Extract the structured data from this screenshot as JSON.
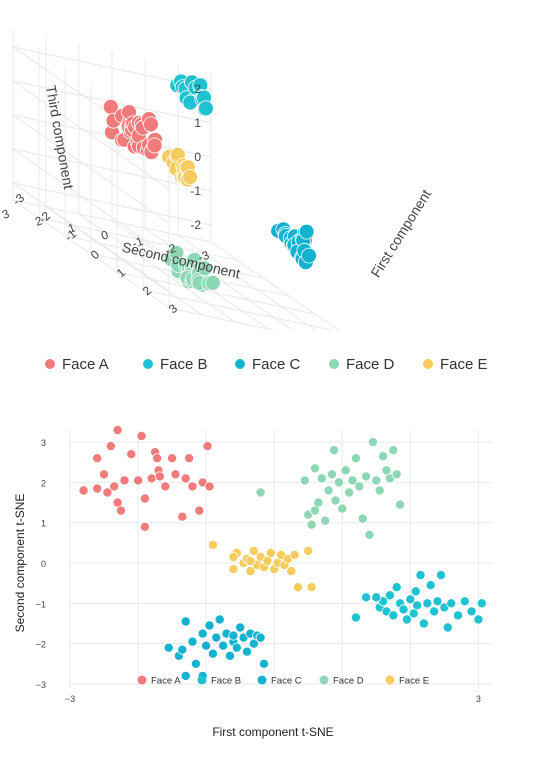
{
  "colors": {
    "Face A": "#f17b7b",
    "Face B": "#1fc2d0",
    "Face C": "#13b3cf",
    "Face D": "#8dd7b5",
    "Face E": "#f7cc5f"
  },
  "chart_data": [
    {
      "type": "scatter",
      "subtype": "3d-scatter",
      "title": "",
      "xlabel": "First component",
      "ylabel": "Second component",
      "zlabel": "Third component",
      "x_ticks": [
        "-3",
        "-2",
        "-1",
        "0",
        "1",
        "2",
        "3"
      ],
      "y_ticks": [
        "-3",
        "-2",
        "-1",
        "0",
        "1",
        "2",
        "3"
      ],
      "z_ticks": [
        "-2",
        "-1",
        "0",
        "1",
        "2"
      ],
      "legend_position": "bottom",
      "series": [
        {
          "name": "Face A",
          "center": [
            0.5,
            2.0,
            1.5
          ],
          "spread": 0.5,
          "n": 32
        },
        {
          "name": "Face B",
          "center": [
            -2.2,
            -1.8,
            2.1
          ],
          "spread": 0.35,
          "n": 16
        },
        {
          "name": "Face C",
          "center": [
            0.8,
            -2.6,
            -0.6
          ],
          "spread": 0.4,
          "n": 22
        },
        {
          "name": "Face D",
          "center": [
            2.1,
            1.6,
            -1.6
          ],
          "spread": 0.45,
          "n": 24
        },
        {
          "name": "Face E",
          "center": [
            -0.6,
            -0.2,
            0.4
          ],
          "spread": 0.3,
          "n": 15
        }
      ]
    },
    {
      "type": "scatter",
      "title": "",
      "xlabel": "First component t-SNE",
      "ylabel": "Second component t-SNE",
      "x_ticks": [
        "−3",
        "3"
      ],
      "y_ticks": [
        "3",
        "2",
        "1",
        "0",
        "−1",
        "−2",
        "−3"
      ],
      "xlim": [
        -3.0,
        3.2
      ],
      "ylim": [
        -3.1,
        3.3
      ],
      "grid": true,
      "legend_position": "bottom-inside",
      "series": [
        {
          "name": "Face A",
          "points": [
            [
              -2.8,
              1.8
            ],
            [
              -2.6,
              1.85
            ],
            [
              -2.6,
              2.6
            ],
            [
              -2.5,
              2.2
            ],
            [
              -2.45,
              1.75
            ],
            [
              -2.4,
              2.9
            ],
            [
              -2.35,
              1.9
            ],
            [
              -2.3,
              3.3
            ],
            [
              -2.3,
              1.5
            ],
            [
              -2.25,
              1.3
            ],
            [
              -2.2,
              2.05
            ],
            [
              -2.1,
              2.7
            ],
            [
              -2.0,
              2.05
            ],
            [
              -1.95,
              3.15
            ],
            [
              -1.9,
              1.6
            ],
            [
              -1.9,
              0.9
            ],
            [
              -1.8,
              2.1
            ],
            [
              -1.75,
              2.75
            ],
            [
              -1.72,
              2.6
            ],
            [
              -1.7,
              2.3
            ],
            [
              -1.68,
              2.15
            ],
            [
              -1.6,
              1.9
            ],
            [
              -1.5,
              2.6
            ],
            [
              -1.45,
              2.2
            ],
            [
              -1.35,
              1.15
            ],
            [
              -1.3,
              2.1
            ],
            [
              -1.25,
              2.6
            ],
            [
              -1.2,
              1.9
            ],
            [
              -1.1,
              1.3
            ],
            [
              -1.05,
              2.0
            ],
            [
              -0.98,
              2.9
            ],
            [
              -0.95,
              1.9
            ]
          ]
        },
        {
          "name": "Face B",
          "points": [
            [
              1.55,
              -1.1
            ],
            [
              1.6,
              -0.95
            ],
            [
              1.65,
              -1.2
            ],
            [
              1.7,
              -0.8
            ],
            [
              1.75,
              -1.3
            ],
            [
              1.8,
              -0.6
            ],
            [
              1.85,
              -1.0
            ],
            [
              1.9,
              -1.15
            ],
            [
              1.95,
              -1.4
            ],
            [
              2.0,
              -0.9
            ],
            [
              2.05,
              -1.25
            ],
            [
              2.08,
              -0.7
            ],
            [
              2.1,
              -1.05
            ],
            [
              2.15,
              -0.3
            ],
            [
              2.2,
              -1.5
            ],
            [
              2.25,
              -1.0
            ],
            [
              2.3,
              -0.55
            ],
            [
              2.35,
              -1.2
            ],
            [
              2.4,
              -0.95
            ],
            [
              2.5,
              -1.1
            ],
            [
              2.55,
              -1.6
            ],
            [
              2.6,
              -1.0
            ],
            [
              2.7,
              -1.3
            ],
            [
              2.8,
              -0.95
            ],
            [
              2.9,
              -1.2
            ],
            [
              3.0,
              -1.4
            ],
            [
              3.05,
              -1.0
            ],
            [
              2.45,
              -0.3
            ],
            [
              1.5,
              -0.85
            ],
            [
              1.2,
              -1.35
            ],
            [
              1.35,
              -0.85
            ]
          ]
        },
        {
          "name": "Face C",
          "points": [
            [
              -1.55,
              -2.1
            ],
            [
              -1.4,
              -2.3
            ],
            [
              -1.35,
              -2.15
            ],
            [
              -1.3,
              -1.45
            ],
            [
              -1.2,
              -1.95
            ],
            [
              -1.15,
              -2.5
            ],
            [
              -1.05,
              -1.75
            ],
            [
              -1.0,
              -2.05
            ],
            [
              -0.95,
              -1.55
            ],
            [
              -0.9,
              -2.25
            ],
            [
              -0.85,
              -1.85
            ],
            [
              -0.8,
              -1.4
            ],
            [
              -0.75,
              -2.05
            ],
            [
              -0.7,
              -1.75
            ],
            [
              -0.65,
              -2.3
            ],
            [
              -0.6,
              -1.95
            ],
            [
              -0.55,
              -2.1
            ],
            [
              -0.5,
              -1.6
            ],
            [
              -0.45,
              -1.85
            ],
            [
              -0.4,
              -2.2
            ],
            [
              -0.35,
              -1.75
            ],
            [
              -0.3,
              -2.0
            ],
            [
              -0.25,
              -1.8
            ],
            [
              -0.2,
              -1.85
            ],
            [
              -0.15,
              -2.5
            ],
            [
              -1.3,
              -2.8
            ],
            [
              -1.05,
              -2.8
            ],
            [
              -0.6,
              -1.8
            ]
          ]
        },
        {
          "name": "Face D",
          "points": [
            [
              -0.2,
              1.75
            ],
            [
              0.45,
              2.05
            ],
            [
              0.5,
              1.2
            ],
            [
              0.55,
              0.95
            ],
            [
              0.6,
              2.35
            ],
            [
              0.65,
              1.5
            ],
            [
              0.7,
              2.1
            ],
            [
              0.75,
              1.05
            ],
            [
              0.8,
              1.8
            ],
            [
              0.85,
              2.2
            ],
            [
              0.88,
              2.8
            ],
            [
              0.9,
              1.55
            ],
            [
              0.95,
              2.0
            ],
            [
              1.0,
              1.35
            ],
            [
              1.05,
              2.3
            ],
            [
              1.1,
              1.75
            ],
            [
              1.15,
              2.05
            ],
            [
              1.2,
              2.6
            ],
            [
              1.25,
              1.9
            ],
            [
              1.3,
              1.1
            ],
            [
              1.35,
              2.15
            ],
            [
              1.4,
              0.7
            ],
            [
              1.45,
              3.0
            ],
            [
              1.5,
              2.05
            ],
            [
              1.55,
              1.8
            ],
            [
              1.6,
              2.65
            ],
            [
              1.65,
              2.3
            ],
            [
              1.7,
              2.1
            ],
            [
              1.75,
              2.8
            ],
            [
              1.8,
              2.2
            ],
            [
              1.85,
              1.45
            ],
            [
              0.6,
              1.3
            ]
          ]
        },
        {
          "name": "Face E",
          "points": [
            [
              -0.9,
              0.45
            ],
            [
              -0.6,
              -0.15
            ],
            [
              -0.55,
              0.25
            ],
            [
              -0.45,
              0.0
            ],
            [
              -0.4,
              0.1
            ],
            [
              -0.35,
              -0.2
            ],
            [
              -0.3,
              0.3
            ],
            [
              -0.25,
              -0.05
            ],
            [
              -0.2,
              0.15
            ],
            [
              -0.15,
              -0.1
            ],
            [
              -0.1,
              0.05
            ],
            [
              -0.05,
              0.25
            ],
            [
              0.0,
              -0.15
            ],
            [
              0.05,
              0.0
            ],
            [
              0.1,
              0.2
            ],
            [
              0.15,
              -0.05
            ],
            [
              0.2,
              0.1
            ],
            [
              0.25,
              -0.2
            ],
            [
              0.3,
              0.2
            ],
            [
              0.35,
              -0.6
            ],
            [
              0.5,
              0.3
            ],
            [
              0.55,
              -0.6
            ],
            [
              -0.6,
              0.15
            ],
            [
              -0.35,
              0.05
            ]
          ]
        }
      ]
    }
  ]
}
